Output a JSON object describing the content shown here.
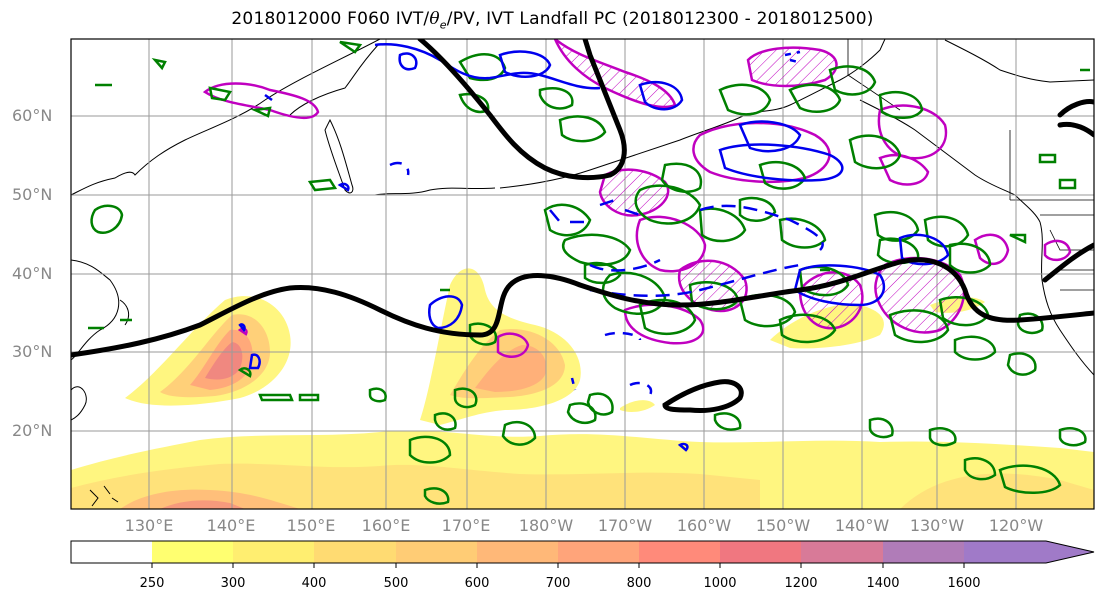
{
  "title": {
    "prefix": "2018012000 F060 IVT/",
    "theta": "θ",
    "theta_sub": "e",
    "suffix": "/PV, IVT Landfall PC (2018012300 - 2018012500)"
  },
  "lat_labels": [
    "60°N",
    "50°N",
    "40°N",
    "30°N",
    "20°N"
  ],
  "lon_labels": [
    "130°E",
    "140°E",
    "150°E",
    "160°E",
    "170°E",
    "180°W",
    "170°W",
    "160°W",
    "150°W",
    "140°W",
    "130°W",
    "120°W"
  ],
  "colorbar": {
    "ticks": [
      "250",
      "300",
      "400",
      "500",
      "600",
      "700",
      "800",
      "1000",
      "1200",
      "1400",
      "1600"
    ],
    "colors": [
      "#ffffff",
      "#ffff70",
      "#ffee70",
      "#ffdb72",
      "#ffcc75",
      "#ffb878",
      "#ffa47a",
      "#ff8a7a",
      "#f07780",
      "#d87a98",
      "#b07cb8",
      "#a07ac8"
    ]
  },
  "colors": {
    "ivt_low": "#fff680",
    "ivt_mid": "#ffc27a",
    "ivt_high": "#f08880",
    "theta_contour": "#000000",
    "pv_positive": "#0000ee",
    "green_contour": "#008000",
    "magenta_contour": "#c000c0",
    "gridline": "#9a9a9a"
  }
}
